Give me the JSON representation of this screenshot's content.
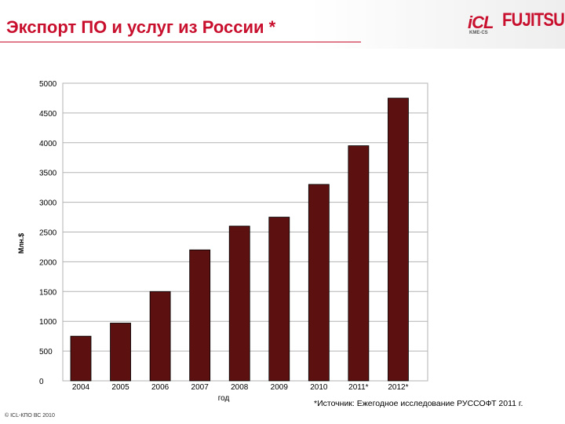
{
  "header": {
    "title": "Экспорт ПО и услуг из России *",
    "title_color": "#c8102e"
  },
  "logos": {
    "icl": "iCL",
    "icl_sub": "KME-CS",
    "fujitsu": "FUJITSU"
  },
  "chart_data": {
    "type": "bar",
    "categories": [
      "2004",
      "2005",
      "2006",
      "2007",
      "2008",
      "2009",
      "2010",
      "2011*",
      "2012*"
    ],
    "values": [
      750,
      970,
      1500,
      2200,
      2600,
      2750,
      3300,
      3950,
      4750
    ],
    "xlabel": "год",
    "ylabel": "Млн.$",
    "ylim": [
      0,
      5000
    ],
    "yticks": [
      0,
      500,
      1000,
      1500,
      2000,
      2500,
      3000,
      3500,
      4000,
      4500,
      5000
    ],
    "grid": true,
    "bar_color": "#5c1010"
  },
  "note": "*Источник: Ежегодное исследование РУССОФТ 2011 г.",
  "footer": "© ICL-КПО ВС 2010"
}
